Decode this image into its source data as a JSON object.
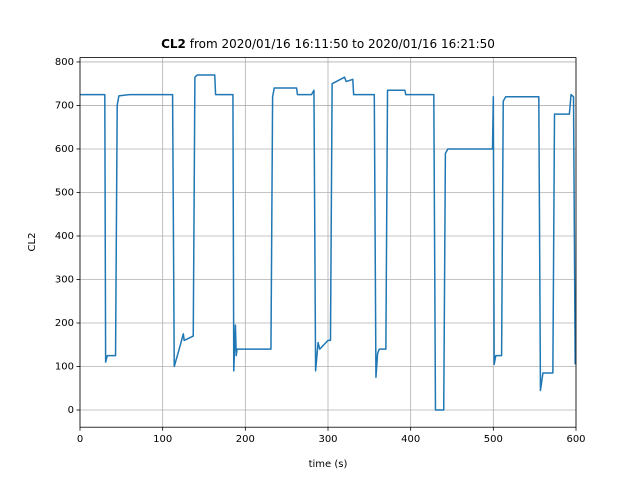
{
  "chart_data": {
    "type": "line",
    "title_var": "CL2",
    "title_rest": "from 2020/01/16 16:11:50 to 2020/01/16 16:21:50",
    "xlabel": "time (s)",
    "ylabel": "CL2",
    "x": [
      0,
      30,
      31,
      33,
      43,
      45,
      47,
      60,
      112,
      114,
      120,
      125,
      126,
      137,
      139,
      142,
      163,
      164,
      185,
      186,
      188,
      189,
      190,
      231,
      233,
      235,
      262,
      263,
      280,
      283,
      285,
      288,
      290,
      300,
      303,
      305,
      310,
      320,
      322,
      330,
      331,
      356,
      358,
      360,
      362,
      370,
      372,
      393,
      394,
      428,
      430,
      440,
      442,
      445,
      499,
      500,
      501,
      503,
      510,
      512,
      515,
      555,
      557,
      560,
      572,
      574,
      592,
      594,
      597,
      599
    ],
    "values": [
      725,
      725,
      110,
      125,
      125,
      700,
      722,
      725,
      725,
      100,
      140,
      175,
      160,
      170,
      765,
      770,
      770,
      725,
      725,
      90,
      195,
      125,
      140,
      140,
      720,
      740,
      740,
      725,
      725,
      735,
      90,
      155,
      140,
      160,
      160,
      750,
      755,
      765,
      755,
      760,
      725,
      725,
      75,
      130,
      140,
      140,
      735,
      735,
      725,
      725,
      0,
      0,
      590,
      600,
      600,
      720,
      105,
      125,
      125,
      710,
      720,
      720,
      45,
      85,
      85,
      680,
      680,
      725,
      720,
      105
    ],
    "color": "#1f77b4",
    "xlim": [
      0,
      600
    ],
    "xticks": [
      0,
      100,
      200,
      300,
      400,
      500,
      600
    ],
    "ylim": [
      -39.5,
      810
    ],
    "yticks": [
      0,
      100,
      200,
      300,
      400,
      500,
      600,
      700,
      800
    ],
    "grid": true
  }
}
